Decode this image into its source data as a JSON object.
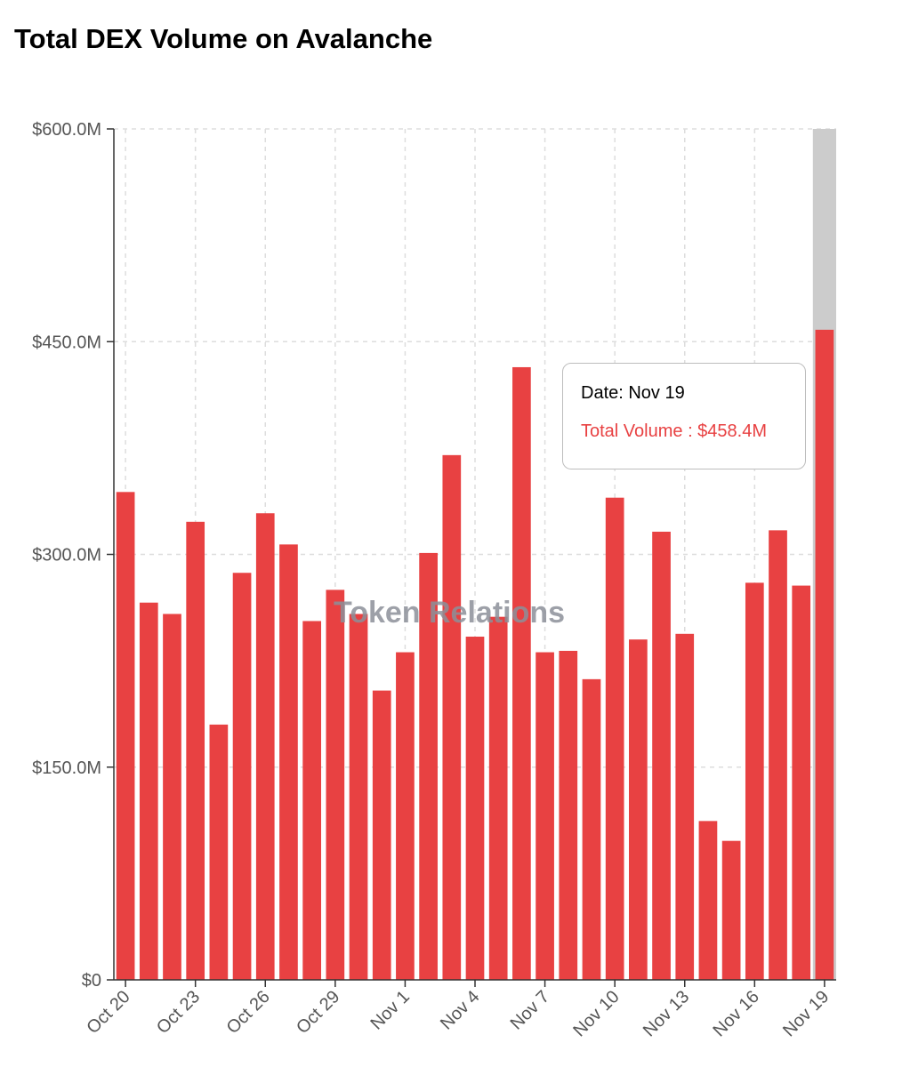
{
  "colors": {
    "bar": "#e84142",
    "highlight": "#cccccc",
    "grid": "#dddddd",
    "axis": "#333333"
  },
  "chart_data": {
    "type": "bar",
    "title": "Total DEX Volume on Avalanche",
    "xlabel": "",
    "ylabel": "",
    "ylim": [
      0,
      600
    ],
    "y_ticks": [
      0,
      150,
      300,
      450,
      600
    ],
    "y_tick_labels": [
      "$0",
      "$150.0M",
      "$300.0M",
      "$450.0M",
      "$600.0M"
    ],
    "categories": [
      "Oct 20",
      "Oct 21",
      "Oct 22",
      "Oct 23",
      "Oct 24",
      "Oct 25",
      "Oct 26",
      "Oct 27",
      "Oct 28",
      "Oct 29",
      "Oct 30",
      "Oct 31",
      "Nov 1",
      "Nov 2",
      "Nov 3",
      "Nov 4",
      "Nov 5",
      "Nov 6",
      "Nov 7",
      "Nov 8",
      "Nov 9",
      "Nov 10",
      "Nov 11",
      "Nov 12",
      "Nov 13",
      "Nov 14",
      "Nov 15",
      "Nov 16",
      "Nov 17",
      "Nov 18",
      "Nov 19"
    ],
    "x_tick_labels": [
      "Oct 20",
      "Oct 23",
      "Oct 26",
      "Oct 29",
      "Nov 1",
      "Nov 4",
      "Nov 7",
      "Nov 10",
      "Nov 13",
      "Nov 16",
      "Nov 19"
    ],
    "series": [
      {
        "name": "Total Volume",
        "values": [
          344,
          266,
          258,
          323,
          180,
          287,
          329,
          307,
          253,
          275,
          258,
          204,
          231,
          301,
          370,
          242,
          256,
          432,
          231,
          232,
          212,
          340,
          240,
          316,
          244,
          112,
          98,
          280,
          317,
          278,
          458.4
        ]
      }
    ],
    "highlighted_category": "Nov 19",
    "watermark": "Token Relations"
  },
  "tooltip": {
    "date_line": "Date: Nov 19",
    "value_line": "Total Volume : $458.4M"
  }
}
